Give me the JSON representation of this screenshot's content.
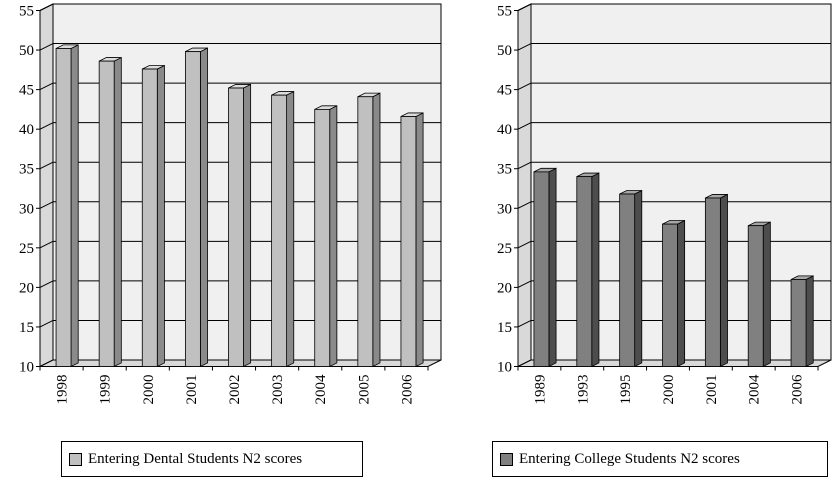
{
  "chart_data": [
    {
      "type": "bar",
      "categories": [
        "1998",
        "1999",
        "2000",
        "2001",
        "2002",
        "2003",
        "2004",
        "2005",
        "2006"
      ],
      "series": [
        {
          "name": "Entering Dental Students N2 scores",
          "values": [
            50.2,
            48.6,
            47.6,
            49.8,
            45.2,
            44.3,
            42.5,
            44.1,
            41.6
          ]
        }
      ],
      "ylim": [
        10,
        55
      ],
      "yticks": [
        "10",
        "15",
        "20",
        "25",
        "30",
        "35",
        "40",
        "45",
        "50",
        "55"
      ],
      "grid": true,
      "legend_position": "bottom",
      "colors": {
        "bar_front": "#c0c0c0",
        "bar_top": "#dcdcdc",
        "bar_side": "#8a8a8a",
        "plot_bg": "#f0f0f0"
      }
    },
    {
      "type": "bar",
      "categories": [
        "1989",
        "1993",
        "1995",
        "2000",
        "2001",
        "2004",
        "2006"
      ],
      "series": [
        {
          "name": "Entering College Students N2 scores",
          "values": [
            34.6,
            34.0,
            31.8,
            28.0,
            31.3,
            27.8,
            21.0
          ]
        }
      ],
      "ylim": [
        10,
        55
      ],
      "yticks": [
        "10",
        "15",
        "20",
        "25",
        "30",
        "35",
        "40",
        "45",
        "50",
        "55"
      ],
      "grid": true,
      "legend_position": "bottom",
      "colors": {
        "bar_front": "#808080",
        "bar_top": "#a6a6a6",
        "bar_side": "#4d4d4d",
        "plot_bg": "#f0f0f0"
      }
    }
  ]
}
